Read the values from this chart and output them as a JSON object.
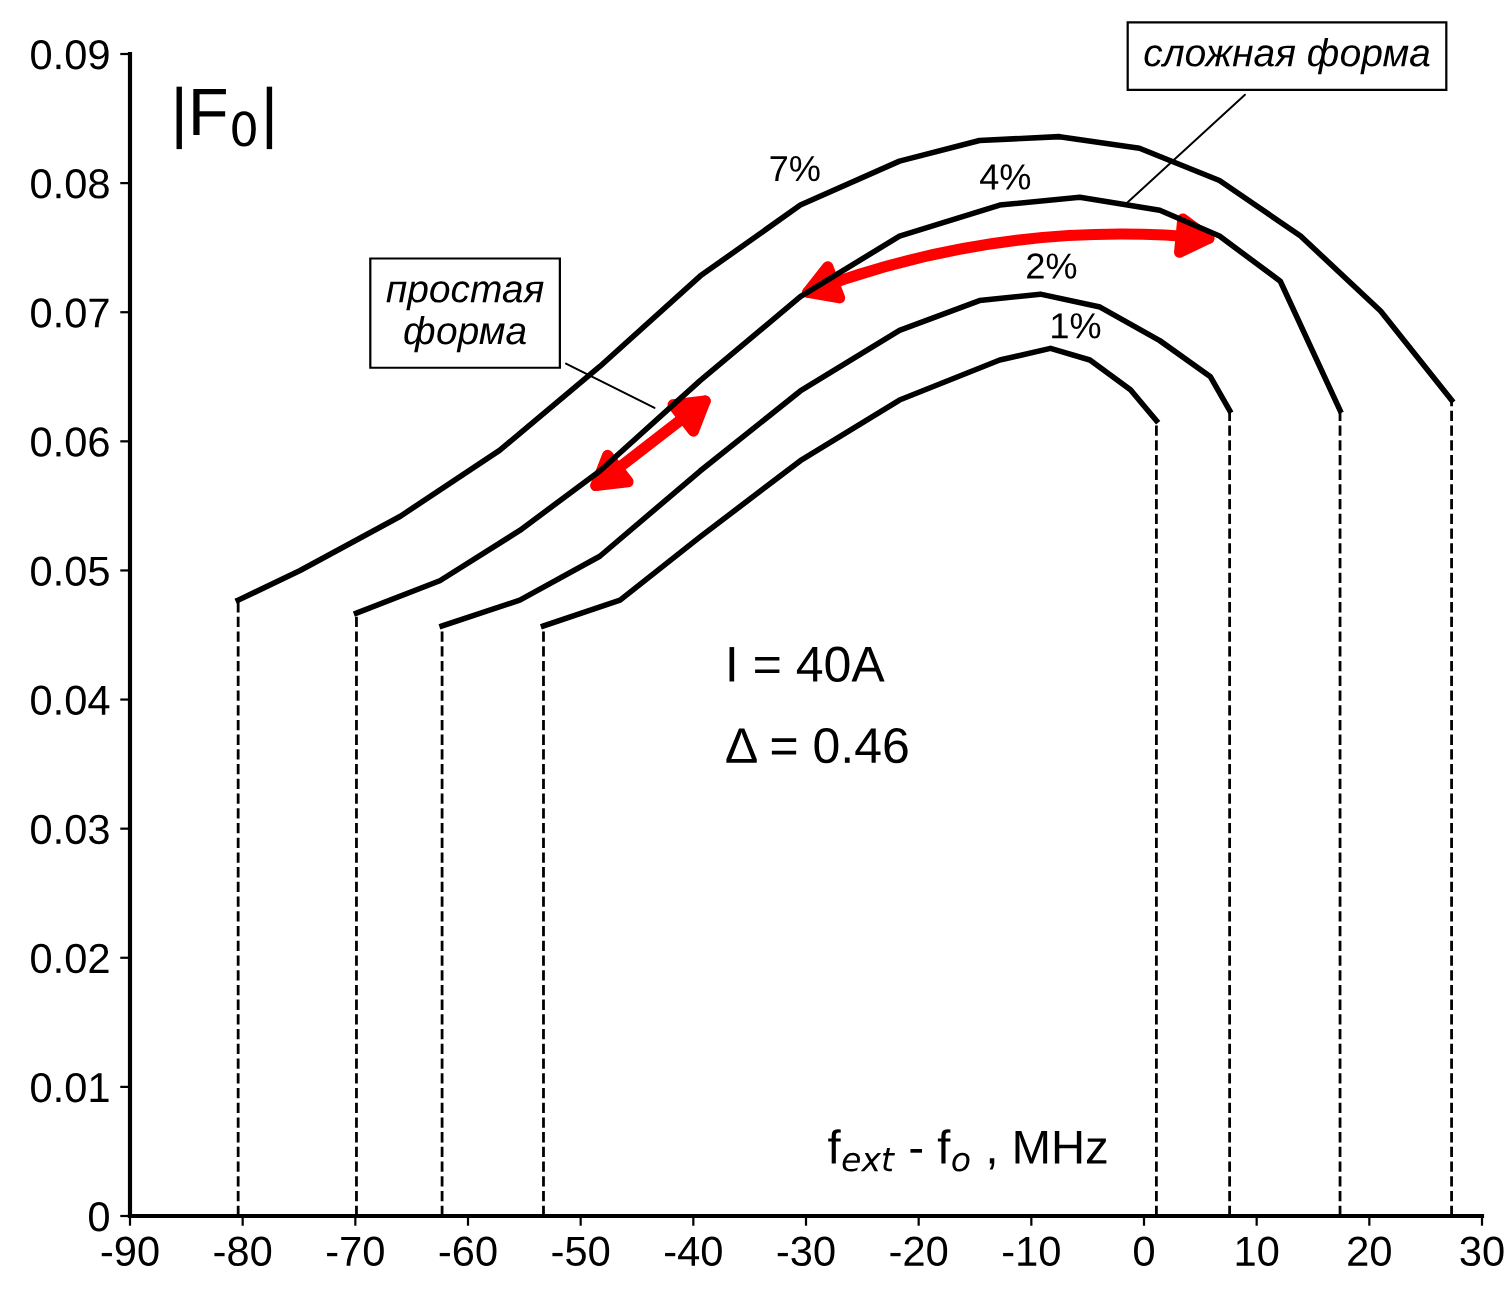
{
  "chart_data": {
    "type": "line",
    "xlabel": "f$_{ext}$ - f$_{o}$ , MHz",
    "xlim": [
      -90,
      30
    ],
    "ylim": [
      0,
      0.09
    ],
    "xticks": [
      -90,
      -80,
      -70,
      -60,
      -50,
      -40,
      -30,
      -20,
      -10,
      0,
      10,
      20,
      30
    ],
    "yticks": [
      0,
      0.01,
      0.02,
      0.03,
      0.04,
      0.05,
      0.06,
      0.07,
      0.08,
      0.09
    ],
    "grid": false,
    "legend": false,
    "marker": "none",
    "series": [
      {
        "name": "7%",
        "color": "#000000",
        "line_style": "solid",
        "x": [
          -80.4,
          -74.9,
          -66.0,
          -57.2,
          -48.3,
          -39.4,
          -30.5,
          -21.7,
          -14.6,
          -7.5,
          -0.4,
          6.7,
          13.9,
          21.0,
          27.3
        ],
        "values": [
          0.0477,
          0.05,
          0.0542,
          0.0593,
          0.0658,
          0.0728,
          0.0783,
          0.0817,
          0.0833,
          0.0836,
          0.0827,
          0.0802,
          0.0759,
          0.0701,
          0.0632
        ]
      },
      {
        "name": "4%",
        "color": "#000000",
        "line_style": "solid",
        "x": [
          -69.9,
          -62.5,
          -55.4,
          -48.3,
          -39.4,
          -30.5,
          -21.7,
          -12.8,
          -5.7,
          1.4,
          6.7,
          12.1,
          17.4
        ],
        "values": [
          0.0467,
          0.0492,
          0.0531,
          0.0577,
          0.0647,
          0.0712,
          0.0759,
          0.0783,
          0.0789,
          0.0779,
          0.0759,
          0.0724,
          0.0624
        ]
      },
      {
        "name": "2%",
        "color": "#000000",
        "line_style": "solid",
        "x": [
          -62.3,
          -55.4,
          -48.3,
          -39.4,
          -30.5,
          -21.7,
          -14.6,
          -9.2,
          -3.9,
          1.4,
          5.9,
          7.6
        ],
        "values": [
          0.0457,
          0.0477,
          0.0511,
          0.0577,
          0.0639,
          0.0686,
          0.0709,
          0.0714,
          0.0704,
          0.0678,
          0.065,
          0.0624
        ]
      },
      {
        "name": "1%",
        "color": "#000000",
        "line_style": "solid",
        "x": [
          -53.3,
          -46.5,
          -39.4,
          -30.5,
          -21.7,
          -12.8,
          -8.3,
          -4.8,
          -1.2,
          1.1
        ],
        "values": [
          0.0457,
          0.0477,
          0.0526,
          0.0585,
          0.0632,
          0.0663,
          0.0672,
          0.0663,
          0.064,
          0.0616
        ]
      },
      {
        "color": "#000000",
        "line_style": "dashed",
        "x": [
          -80.4,
          -80.4
        ],
        "values": [
          0,
          0.0477
        ]
      },
      {
        "color": "#000000",
        "line_style": "dashed",
        "x": [
          -69.9,
          -69.9
        ],
        "values": [
          0,
          0.0467
        ]
      },
      {
        "color": "#000000",
        "line_style": "dashed",
        "x": [
          -62.3,
          -62.3
        ],
        "values": [
          0,
          0.0457
        ]
      },
      {
        "color": "#000000",
        "line_style": "dashed",
        "x": [
          -53.3,
          -53.3
        ],
        "values": [
          0,
          0.0457
        ]
      },
      {
        "color": "#000000",
        "line_style": "dashed",
        "x": [
          1.1,
          1.1
        ],
        "values": [
          0,
          0.0616
        ]
      },
      {
        "color": "#000000",
        "line_style": "dashed",
        "x": [
          7.6,
          7.6
        ],
        "values": [
          0,
          0.0624
        ]
      },
      {
        "color": "#000000",
        "line_style": "dashed",
        "x": [
          17.4,
          17.4
        ],
        "values": [
          0,
          0.0624
        ]
      },
      {
        "color": "#000000",
        "line_style": "dashed",
        "x": [
          27.3,
          27.3
        ],
        "values": [
          0,
          0.0632
        ]
      }
    ],
    "annotations": [
      "|F$_{0}$|",
      "I = 40A",
      "Δ = 0.46",
      {
        "text": "простая\nформа",
        "x": -43,
        "y": 0.0624
      },
      {
        "text": "сложная форма",
        "x": -2.1,
        "y": 0.078
      }
    ]
  }
}
